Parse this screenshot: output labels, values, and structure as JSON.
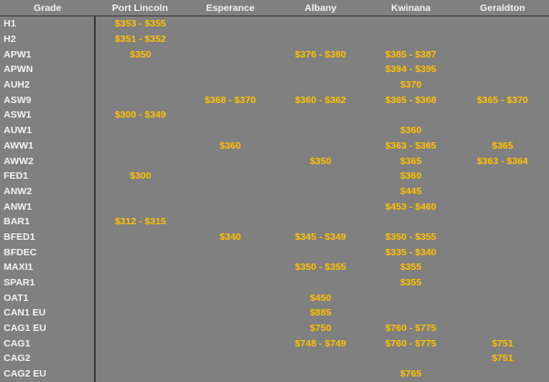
{
  "headers": [
    "Grade",
    "Port Lincoln",
    "Esperance",
    "Albany",
    "Kwinana",
    "Geraldton"
  ],
  "rows": [
    [
      "H1",
      "$353 - $355",
      "",
      "",
      "",
      ""
    ],
    [
      "H2",
      "$351 - $352",
      "",
      "",
      "",
      ""
    ],
    [
      "APW1",
      "$350",
      "",
      "$376 - $380",
      "$385 - $387",
      ""
    ],
    [
      "APWN",
      "",
      "",
      "",
      "$394 - $395",
      ""
    ],
    [
      "AUH2",
      "",
      "",
      "",
      "$370",
      ""
    ],
    [
      "ASW9",
      "",
      "$368 - $370",
      "$360 - $362",
      "$365 - $368",
      "$365 - $370"
    ],
    [
      "ASW1",
      "$300 - $349",
      "",
      "",
      "",
      ""
    ],
    [
      "AUW1",
      "",
      "",
      "",
      "$360",
      ""
    ],
    [
      "AWW1",
      "",
      "$360",
      "",
      "$363 - $365",
      "$365"
    ],
    [
      "AWW2",
      "",
      "",
      "$350",
      "$365",
      "$363 - $364"
    ],
    [
      "FED1",
      "$300",
      "",
      "",
      "$360",
      ""
    ],
    [
      "ANW2",
      "",
      "",
      "",
      "$445",
      ""
    ],
    [
      "ANW1",
      "",
      "",
      "",
      "$453 - $460",
      ""
    ],
    [
      "BAR1",
      "$312 - $315",
      "",
      "",
      "",
      ""
    ],
    [
      "BFED1",
      "",
      "$340",
      "$345 - $349",
      "$350 - $355",
      ""
    ],
    [
      "BFDEC",
      "",
      "",
      "",
      "$335 - $340",
      ""
    ],
    [
      "MAXI1",
      "",
      "",
      "$350 - $355",
      "$355",
      ""
    ],
    [
      "SPAR1",
      "",
      "",
      "",
      "$355",
      ""
    ],
    [
      "OAT1",
      "",
      "",
      "$450",
      "",
      ""
    ],
    [
      "CAN1 EU",
      "",
      "",
      "$885",
      "",
      ""
    ],
    [
      "CAG1 EU",
      "",
      "",
      "$750",
      "$760 - $775",
      ""
    ],
    [
      "CAG1",
      "",
      "",
      "$748 - $749",
      "$760 - $775",
      "$751"
    ],
    [
      "CAG2",
      "",
      "",
      "",
      "",
      "$751"
    ],
    [
      "CAG2 EU",
      "",
      "",
      "",
      "$765",
      ""
    ]
  ],
  "colors": {
    "background": "#808080",
    "price": "#ffc000",
    "label": "#f2f2f2"
  }
}
